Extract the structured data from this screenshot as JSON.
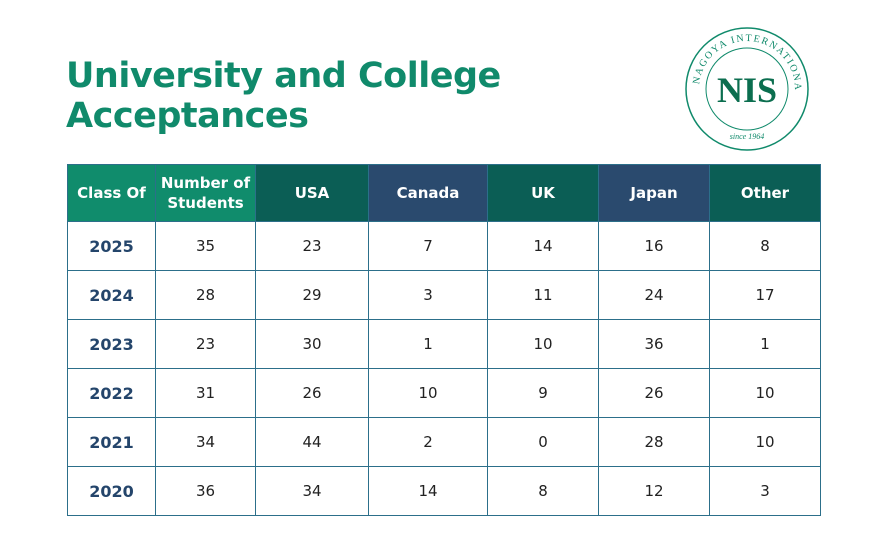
{
  "header": {
    "title_line1": "University and College",
    "title_line2": "Acceptances"
  },
  "logo": {
    "initials": "NIS",
    "ring_text": "NAGOYA INTERNATIONAL SCHOOL",
    "since": "since 1964"
  },
  "table": {
    "columns": [
      "Class Of",
      "Number of Students",
      "USA",
      "Canada",
      "UK",
      "Japan",
      "Other"
    ],
    "rows": [
      [
        "2025",
        35,
        23,
        7,
        14,
        16,
        8
      ],
      [
        "2024",
        28,
        29,
        3,
        11,
        24,
        17
      ],
      [
        "2023",
        23,
        30,
        1,
        10,
        36,
        1
      ],
      [
        "2022",
        31,
        26,
        10,
        9,
        26,
        10
      ],
      [
        "2021",
        34,
        44,
        2,
        0,
        28,
        10
      ],
      [
        "2020",
        36,
        34,
        14,
        8,
        12,
        3
      ]
    ]
  }
}
